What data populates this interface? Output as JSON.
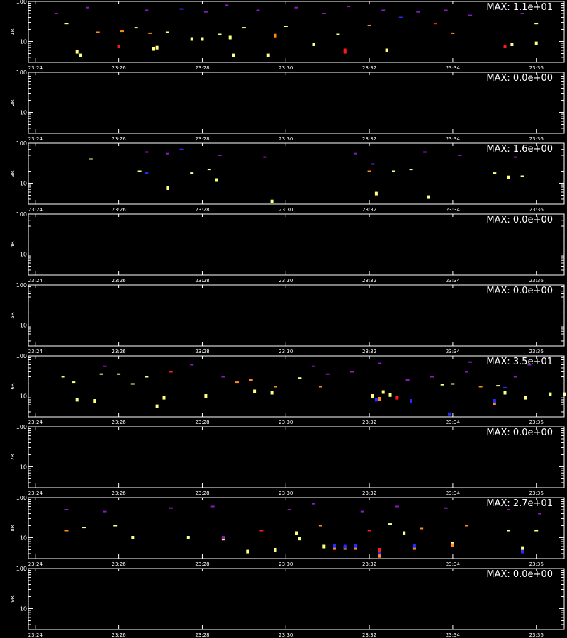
{
  "figure": {
    "bottom_caption": "",
    "colors": {
      "background": "#000000",
      "frame": "#ffffff",
      "text": "#ffffff"
    }
  },
  "chart_data": [
    {
      "type": "heatmap",
      "panel_label": "1R",
      "max_label": "MAX: 1.1e+01",
      "yscale": "log",
      "ylim": [
        3,
        100
      ],
      "ytick_labels": [
        "100",
        "10"
      ],
      "ytick_values": [
        100,
        10
      ],
      "x_tick_labels": [
        "23:24",
        "23:26",
        "23:28",
        "23:30",
        "23:32",
        "23:34",
        "23:36"
      ],
      "xlim": [
        "23:23:50",
        "23:36:40"
      ],
      "points": [
        [
          "23:25:00",
          5.5,
          "yellow"
        ],
        [
          "23:25:05",
          4.5,
          "yellow"
        ],
        [
          "23:26:00",
          7.5,
          "red"
        ],
        [
          "23:26:50",
          6.5,
          "yellow"
        ],
        [
          "23:26:55",
          7.0,
          "yellow"
        ],
        [
          "23:27:45",
          11.5,
          "yellow"
        ],
        [
          "23:28:00",
          11.5,
          "yellow"
        ],
        [
          "23:28:40",
          12.5,
          "yellow"
        ],
        [
          "23:28:45",
          4.5,
          "yellow"
        ],
        [
          "23:29:35",
          4.5,
          "yellow"
        ],
        [
          "23:31:25",
          6.0,
          "red"
        ],
        [
          "23:31:25",
          5.5,
          "red"
        ],
        [
          "23:32:25",
          6.0,
          "yellow"
        ],
        [
          "23:35:15",
          7.5,
          "red"
        ],
        [
          "23:35:25",
          8.5,
          "yellow"
        ],
        [
          "23:36:00",
          9.0,
          "yellow"
        ],
        [
          "23:36:55",
          11.0,
          "yellow"
        ],
        [
          "23:24:45",
          28,
          "yellow"
        ],
        [
          "23:25:30",
          17,
          "orange"
        ],
        [
          "23:26:05",
          18,
          "orange"
        ],
        [
          "23:26:25",
          22,
          "yellow"
        ],
        [
          "23:26:45",
          16,
          "orange"
        ],
        [
          "23:27:10",
          17,
          "yellow"
        ],
        [
          "23:28:25",
          15,
          "yellow"
        ],
        [
          "23:29:00",
          22,
          "yellow"
        ],
        [
          "23:29:45",
          14,
          "orange"
        ],
        [
          "23:30:00",
          24,
          "yellow"
        ],
        [
          "23:30:40",
          8.5,
          "yellow"
        ],
        [
          "23:31:15",
          15,
          "yellow"
        ],
        [
          "23:32:00",
          25,
          "orange"
        ],
        [
          "23:33:35",
          28,
          "red"
        ],
        [
          "23:34:00",
          16,
          "orange"
        ],
        [
          "23:36:00",
          28,
          "yellow"
        ],
        [
          "23:24:30",
          50,
          "purple"
        ],
        [
          "23:25:15",
          70,
          "purple"
        ],
        [
          "23:26:40",
          60,
          "purple"
        ],
        [
          "23:27:30",
          65,
          "blue"
        ],
        [
          "23:28:05",
          55,
          "purple"
        ],
        [
          "23:28:35",
          80,
          "purple"
        ],
        [
          "23:29:20",
          60,
          "purple"
        ],
        [
          "23:30:15",
          70,
          "purple"
        ],
        [
          "23:30:55",
          50,
          "purple"
        ],
        [
          "23:31:30",
          75,
          "purple"
        ],
        [
          "23:32:20",
          60,
          "purple"
        ],
        [
          "23:32:45",
          40,
          "blue"
        ],
        [
          "23:33:10",
          55,
          "purple"
        ],
        [
          "23:33:50",
          60,
          "purple"
        ],
        [
          "23:34:25",
          45,
          "purple"
        ],
        [
          "23:35:10",
          65,
          "purple"
        ],
        [
          "23:35:40",
          50,
          "purple"
        ]
      ]
    },
    {
      "type": "heatmap",
      "panel_label": "2R",
      "max_label": "MAX: 0.0e+00",
      "yscale": "log",
      "ylim": [
        3,
        100
      ],
      "ytick_labels": [
        "100",
        "10"
      ],
      "ytick_values": [
        100,
        10
      ],
      "x_tick_labels": [
        "23:24",
        "23:26",
        "23:28",
        "23:30",
        "23:32",
        "23:34",
        "23:36"
      ],
      "xlim": [
        "23:23:50",
        "23:36:40"
      ],
      "points": []
    },
    {
      "type": "heatmap",
      "panel_label": "3R",
      "max_label": "MAX: 1.6e+00",
      "yscale": "log",
      "ylim": [
        3,
        100
      ],
      "ytick_labels": [
        "100",
        "10"
      ],
      "ytick_values": [
        100,
        10
      ],
      "x_tick_labels": [
        "23:24",
        "23:26",
        "23:28",
        "23:30",
        "23:32",
        "23:34",
        "23:36"
      ],
      "xlim": [
        "23:23:50",
        "23:36:40"
      ],
      "points": [
        [
          "23:27:10",
          7.5,
          "yellow"
        ],
        [
          "23:29:40",
          3.5,
          "yellow"
        ],
        [
          "23:32:10",
          5.5,
          "yellow"
        ],
        [
          "23:33:25",
          4.5,
          "yellow"
        ],
        [
          "23:35:40",
          15,
          "yellow"
        ],
        [
          "23:25:20",
          40,
          "yellow"
        ],
        [
          "23:26:30",
          20,
          "yellow"
        ],
        [
          "23:27:45",
          18,
          "yellow"
        ],
        [
          "23:28:10",
          22,
          "yellow"
        ],
        [
          "23:28:20",
          12,
          "yellow"
        ],
        [
          "23:32:35",
          20,
          "yellow"
        ],
        [
          "23:32:00",
          20,
          "orange"
        ],
        [
          "23:33:00",
          22,
          "yellow"
        ],
        [
          "23:35:00",
          18,
          "yellow"
        ],
        [
          "23:35:20",
          14,
          "yellow"
        ],
        [
          "23:26:40",
          60,
          "purple"
        ],
        [
          "23:27:10",
          55,
          "purple"
        ],
        [
          "23:27:30",
          70,
          "blue"
        ],
        [
          "23:28:25",
          50,
          "purple"
        ],
        [
          "23:29:30",
          45,
          "purple"
        ],
        [
          "23:31:40",
          55,
          "purple"
        ],
        [
          "23:33:20",
          60,
          "purple"
        ],
        [
          "23:34:10",
          50,
          "purple"
        ],
        [
          "23:35:30",
          45,
          "purple"
        ],
        [
          "23:26:40",
          18,
          "blue"
        ],
        [
          "23:32:05",
          30,
          "purple"
        ]
      ]
    },
    {
      "type": "heatmap",
      "panel_label": "4R",
      "max_label": "MAX: 0.0e+00",
      "yscale": "log",
      "ylim": [
        3,
        100
      ],
      "ytick_labels": [
        "100",
        "10"
      ],
      "ytick_values": [
        100,
        10
      ],
      "x_tick_labels": [
        "23:24",
        "23:26",
        "23:28",
        "23:30",
        "23:32",
        "23:34",
        "23:36"
      ],
      "xlim": [
        "23:23:50",
        "23:36:40"
      ],
      "points": []
    },
    {
      "type": "heatmap",
      "panel_label": "5R",
      "max_label": "MAX: 0.0e+00",
      "yscale": "log",
      "ylim": [
        3,
        100
      ],
      "ytick_labels": [
        "100",
        "10"
      ],
      "ytick_values": [
        100,
        10
      ],
      "x_tick_labels": [
        "23:24",
        "23:26",
        "23:28",
        "23:30",
        "23:32",
        "23:34",
        "23:36"
      ],
      "xlim": [
        "23:23:50",
        "23:36:40"
      ],
      "points": []
    },
    {
      "type": "heatmap",
      "panel_label": "6R",
      "max_label": "MAX: 3.5e+01",
      "yscale": "log",
      "ylim": [
        3,
        100
      ],
      "ytick_labels": [
        "100",
        "10"
      ],
      "ytick_values": [
        100,
        10
      ],
      "x_tick_labels": [
        "23:24",
        "23:26",
        "23:28",
        "23:30",
        "23:32",
        "23:34",
        "23:36"
      ],
      "xlim": [
        "23:23:50",
        "23:36:40"
      ],
      "points": [
        [
          "23:25:00",
          8.0,
          "yellow"
        ],
        [
          "23:25:25",
          7.5,
          "yellow"
        ],
        [
          "23:26:55",
          5.5,
          "yellow"
        ],
        [
          "23:27:05",
          9.0,
          "yellow"
        ],
        [
          "23:28:05",
          10.0,
          "yellow"
        ],
        [
          "23:29:40",
          12.0,
          "yellow"
        ],
        [
          "23:32:05",
          10.0,
          "yellow"
        ],
        [
          "23:32:10",
          8.0,
          "blue"
        ],
        [
          "23:32:15",
          8.5,
          "orange"
        ],
        [
          "23:32:20",
          12.5,
          "yellow"
        ],
        [
          "23:32:30",
          10.5,
          "yellow"
        ],
        [
          "23:32:40",
          9.0,
          "red"
        ],
        [
          "23:33:00",
          7.5,
          "blue"
        ],
        [
          "23:33:55",
          3.5,
          "blue"
        ],
        [
          "23:35:00",
          6.5,
          "orange"
        ],
        [
          "23:35:00",
          7.5,
          "blue"
        ],
        [
          "23:35:15",
          16,
          "blue"
        ],
        [
          "23:35:15",
          12,
          "yellow"
        ],
        [
          "23:35:45",
          9.0,
          "yellow"
        ],
        [
          "23:36:20",
          11,
          "yellow"
        ],
        [
          "23:36:40",
          11,
          "yellow"
        ],
        [
          "23:28:50",
          22,
          "orange"
        ],
        [
          "23:29:10",
          25,
          "orange"
        ],
        [
          "23:29:45",
          17,
          "orange"
        ],
        [
          "23:29:15",
          13,
          "yellow"
        ],
        [
          "23:30:20",
          28,
          "yellow"
        ],
        [
          "23:30:50",
          17,
          "orange"
        ],
        [
          "23:34:40",
          17,
          "orange"
        ],
        [
          "23:35:05",
          18,
          "yellow"
        ],
        [
          "23:34:00",
          20,
          "yellow"
        ],
        [
          "23:33:45",
          19,
          "yellow"
        ],
        [
          "23:24:40",
          30,
          "yellow"
        ],
        [
          "23:24:55",
          22,
          "yellow"
        ],
        [
          "23:25:35",
          35,
          "yellow"
        ],
        [
          "23:26:00",
          35,
          "yellow"
        ],
        [
          "23:26:20",
          20,
          "yellow"
        ],
        [
          "23:26:40",
          30,
          "yellow"
        ],
        [
          "23:27:15",
          40,
          "red"
        ],
        [
          "23:28:30",
          30,
          "purple"
        ],
        [
          "23:31:00",
          35,
          "purple"
        ],
        [
          "23:31:35",
          40,
          "purple"
        ],
        [
          "23:32:55",
          25,
          "purple"
        ],
        [
          "23:33:30",
          30,
          "purple"
        ],
        [
          "23:34:20",
          40,
          "purple"
        ],
        [
          "23:35:30",
          30,
          "purple"
        ],
        [
          "23:25:40",
          55,
          "purple"
        ],
        [
          "23:27:45",
          60,
          "purple"
        ],
        [
          "23:30:40",
          55,
          "purple"
        ],
        [
          "23:32:15",
          65,
          "purple"
        ],
        [
          "23:34:25",
          70,
          "purple"
        ],
        [
          "23:35:50",
          60,
          "purple"
        ]
      ]
    },
    {
      "type": "heatmap",
      "panel_label": "7R",
      "max_label": "MAX: 0.0e+00",
      "yscale": "log",
      "ylim": [
        3,
        100
      ],
      "ytick_labels": [
        "100",
        "10"
      ],
      "ytick_values": [
        100,
        10
      ],
      "x_tick_labels": [
        "23:24",
        "23:26",
        "23:28",
        "23:30",
        "23:32",
        "23:34",
        "23:36"
      ],
      "xlim": [
        "23:23:50",
        "23:36:40"
      ],
      "points": []
    },
    {
      "type": "heatmap",
      "panel_label": "8R",
      "max_label": "MAX: 2.7e+01",
      "yscale": "log",
      "ylim": [
        3,
        100
      ],
      "ytick_labels": [
        "100",
        "10"
      ],
      "ytick_values": [
        100,
        10
      ],
      "x_tick_labels": [
        "23:24",
        "23:26",
        "23:28",
        "23:30",
        "23:32",
        "23:34",
        "23:36"
      ],
      "xlim": [
        "23:23:50",
        "23:36:40"
      ],
      "points": [
        [
          "23:29:05",
          4.5,
          "yellow"
        ],
        [
          "23:29:45",
          5.0,
          "yellow"
        ],
        [
          "23:30:20",
          9.5,
          "yellow"
        ],
        [
          "23:30:55",
          6.0,
          "yellow"
        ],
        [
          "23:31:10",
          5.5,
          "orange"
        ],
        [
          "23:31:10",
          6.2,
          "blue"
        ],
        [
          "23:31:25",
          5.5,
          "orange"
        ],
        [
          "23:31:25",
          6.0,
          "blue"
        ],
        [
          "23:31:40",
          5.5,
          "orange"
        ],
        [
          "23:31:40",
          6.2,
          "blue"
        ],
        [
          "23:32:15",
          3.5,
          "orange"
        ],
        [
          "23:32:15",
          4.2,
          "blue"
        ],
        [
          "23:32:15",
          5.0,
          "red"
        ],
        [
          "23:33:05",
          5.5,
          "orange"
        ],
        [
          "23:33:05",
          6.2,
          "blue"
        ],
        [
          "23:34:00",
          7.0,
          "yellow"
        ],
        [
          "23:34:00",
          6.5,
          "orange"
        ],
        [
          "23:35:40",
          5.0,
          "orange"
        ],
        [
          "23:35:40",
          4.5,
          "blue"
        ],
        [
          "23:35:40",
          5.5,
          "yellow"
        ],
        [
          "23:26:20",
          10,
          "yellow"
        ],
        [
          "23:27:40",
          10,
          "yellow"
        ],
        [
          "23:28:30",
          9.5,
          "yellow"
        ],
        [
          "23:28:30",
          10,
          "purple"
        ],
        [
          "23:30:15",
          13,
          "yellow"
        ],
        [
          "23:25:55",
          20,
          "yellow"
        ],
        [
          "23:25:10",
          18,
          "yellow"
        ],
        [
          "23:24:45",
          15,
          "orange"
        ],
        [
          "23:29:25",
          15,
          "red"
        ],
        [
          "23:30:50",
          20,
          "orange"
        ],
        [
          "23:32:00",
          15,
          "red"
        ],
        [
          "23:32:30",
          22,
          "yellow"
        ],
        [
          "23:32:50",
          13,
          "yellow"
        ],
        [
          "23:33:15",
          17,
          "orange"
        ],
        [
          "23:34:20",
          20,
          "orange"
        ],
        [
          "23:35:20",
          15,
          "yellow"
        ],
        [
          "23:36:00",
          15,
          "yellow"
        ],
        [
          "23:24:45",
          50,
          "purple"
        ],
        [
          "23:25:40",
          45,
          "purple"
        ],
        [
          "23:27:15",
          55,
          "purple"
        ],
        [
          "23:28:15",
          60,
          "purple"
        ],
        [
          "23:30:05",
          50,
          "purple"
        ],
        [
          "23:30:40",
          70,
          "purple"
        ],
        [
          "23:31:50",
          45,
          "purple"
        ],
        [
          "23:32:40",
          60,
          "purple"
        ],
        [
          "23:33:50",
          55,
          "purple"
        ],
        [
          "23:35:20",
          50,
          "purple"
        ],
        [
          "23:36:05",
          40,
          "purple"
        ]
      ]
    },
    {
      "type": "heatmap",
      "panel_label": "9R",
      "max_label": "MAX: 0.0e+00",
      "yscale": "log",
      "ylim": [
        3,
        100
      ],
      "ytick_labels": [
        "100",
        "10"
      ],
      "ytick_values": [
        100,
        10
      ],
      "x_tick_labels": [
        "23:24",
        "23:26",
        "23:28",
        "23:30",
        "23:32",
        "23:34",
        "23:36"
      ],
      "xlim": [
        "23:23:50",
        "23:36:40"
      ],
      "points": []
    }
  ]
}
